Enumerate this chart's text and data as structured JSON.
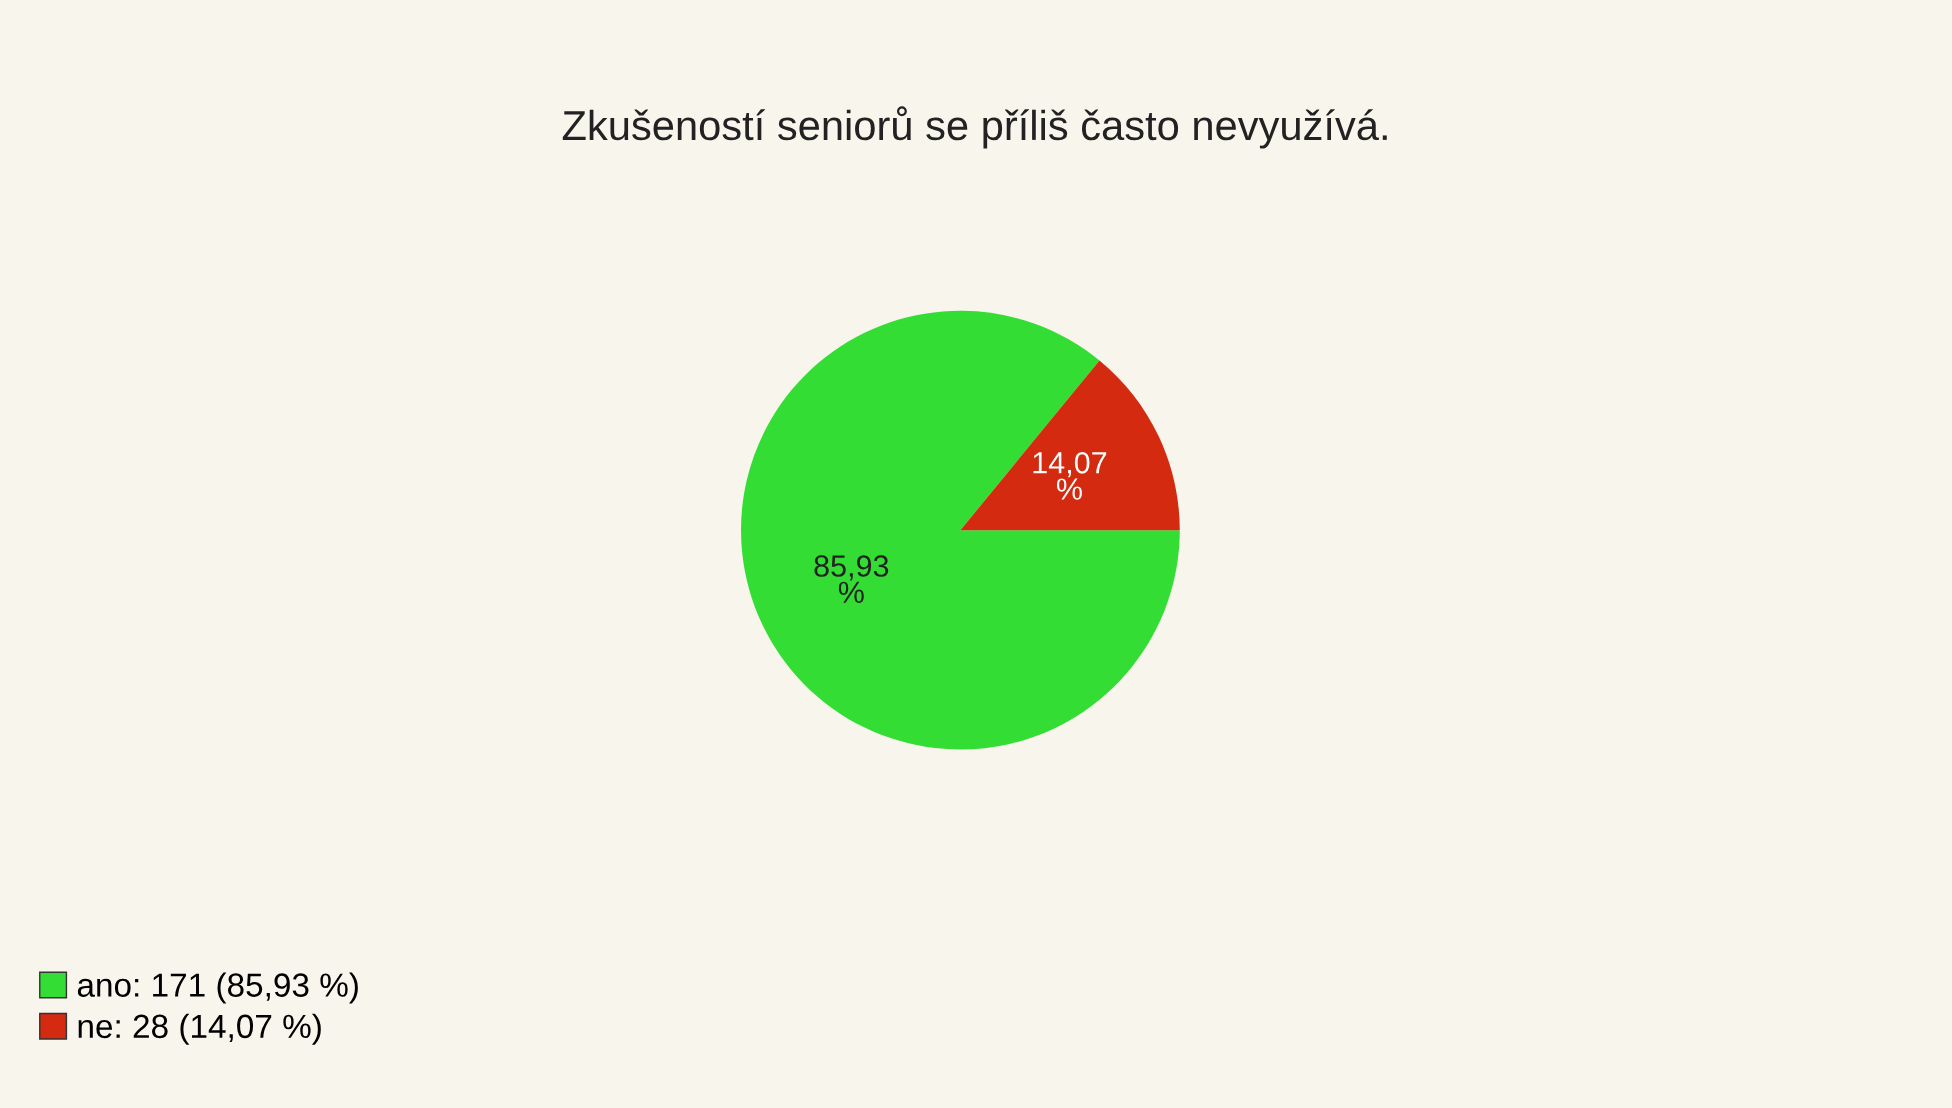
{
  "chart_data": {
    "type": "pie",
    "title": "Zkušeností seniorů se příliš často nevyužívá.",
    "categories": [
      "ano: 171 (85,93 %)",
      "ne: 28 (14,07 %)"
    ],
    "values": [
      85.93,
      14.07
    ],
    "value_labels": [
      "85,93 %",
      "14,07 %"
    ],
    "colors": [
      "#33dd33",
      "#d42a10"
    ],
    "legend": "bottom left"
  }
}
